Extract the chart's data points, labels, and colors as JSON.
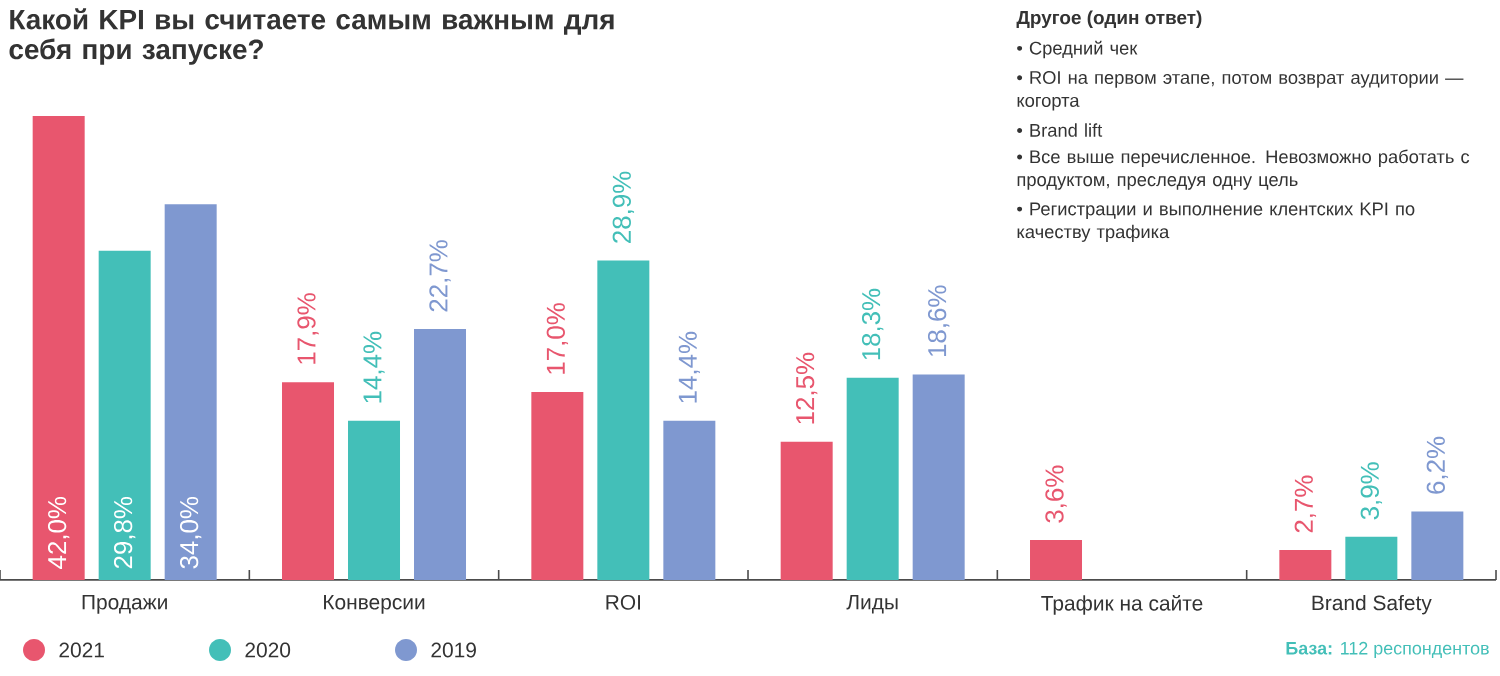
{
  "chart_data": {
    "type": "bar",
    "title": "Какой KPI вы считаете самым важным для себя при запуске?",
    "categories": [
      "Продажи",
      "Конверсии",
      "ROI",
      "Лиды",
      "Трафик на сайте",
      "Brand Safety"
    ],
    "series": [
      {
        "name": "2021",
        "color": "#e8566e",
        "values": [
          42.0,
          17.9,
          17.0,
          12.5,
          3.6,
          2.7
        ],
        "value_labels": [
          "42,0%",
          "17,9%",
          "17,0%",
          "12,5%",
          "3,6%",
          "2,7%"
        ]
      },
      {
        "name": "2020",
        "color": "#43bfb8",
        "values": [
          29.8,
          14.4,
          28.9,
          18.3,
          null,
          3.9
        ],
        "value_labels": [
          "29,8%",
          "14,4%",
          "28,9%",
          "18,3%",
          null,
          "3,9%"
        ]
      },
      {
        "name": "2019",
        "color": "#7f98d0",
        "values": [
          34.0,
          22.7,
          14.4,
          18.6,
          null,
          6.2
        ],
        "value_labels": [
          "34,0%",
          "22,7%",
          "14,4%",
          "18,6%",
          null,
          "6,2%"
        ]
      }
    ],
    "legend": "bottom left",
    "annotations": [
      "Другое (один ответ)",
      "• Средний чек",
      "• ROI на первом этапе, потом возврат аудитории — когорта",
      "• Brand lift",
      "• Все выше перечисленное. Невозможно работать с продуктом, преследуя одну цель",
      "• Регистрации и выполнение клентских KPI по качеству трафика",
      "**База:** 112 респондентов"
    ]
  }
}
